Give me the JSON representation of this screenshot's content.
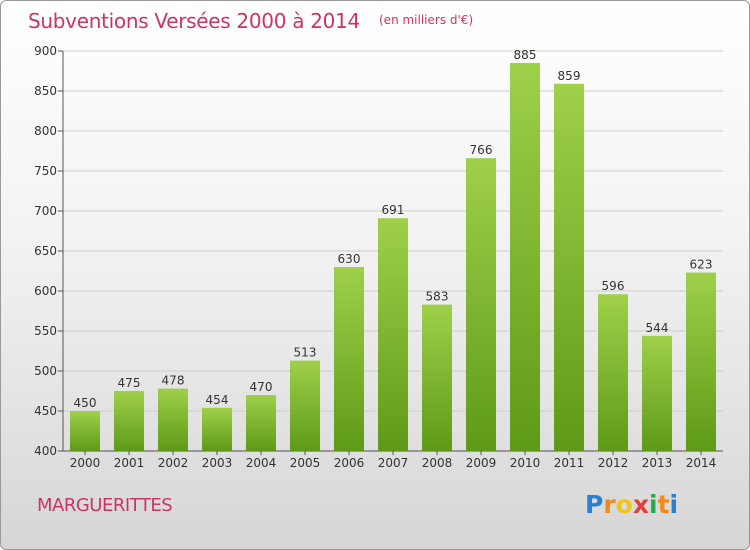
{
  "chart_data": {
    "type": "bar",
    "title": "Subventions Versées 2000 à 2014",
    "subtitle": "(en milliers d'€)",
    "xlabel": "",
    "ylabel": "",
    "categories": [
      "2000",
      "2001",
      "2002",
      "2003",
      "2004",
      "2005",
      "2006",
      "2007",
      "2008",
      "2009",
      "2010",
      "2011",
      "2012",
      "2013",
      "2014"
    ],
    "values": [
      450,
      475,
      478,
      454,
      470,
      513,
      630,
      691,
      583,
      766,
      885,
      859,
      596,
      544,
      623
    ],
    "ylim": [
      400,
      900
    ],
    "yticks": [
      400,
      450,
      500,
      550,
      600,
      650,
      700,
      750,
      800,
      850,
      900
    ],
    "grid": true,
    "bar_color_top": "#9fd04a",
    "bar_color_bottom": "#5e9a17"
  },
  "footer": {
    "commune": "MARGUERITTES",
    "logo": {
      "letters": [
        "P",
        "r",
        "o",
        "x",
        "i",
        "t",
        "i"
      ],
      "colors": [
        "#2a7fd4",
        "#f08a1c",
        "#f0c419",
        "#e2403a",
        "#2aaa4a",
        "#f08a1c",
        "#2a7fd4"
      ]
    }
  }
}
